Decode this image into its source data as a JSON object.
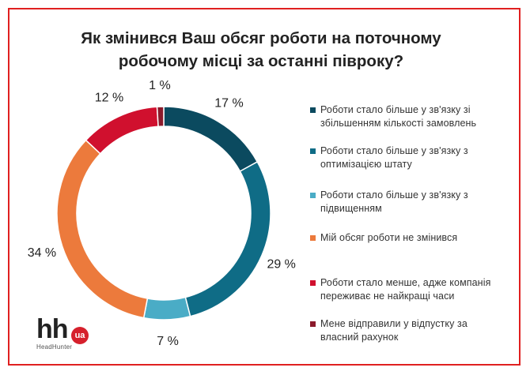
{
  "title": {
    "line1": "Як змінився Ваш обсяг роботи на поточному",
    "line2": "робочому місці за останні півроку?"
  },
  "chart_data": {
    "type": "pie",
    "title": "Як змінився Ваш обсяг роботи на поточному робочому місці за останні півроку?",
    "donut": true,
    "legend_position": "right",
    "categories": [
      "Роботи стало більше у зв'язку зі збільшенням кількості замовлень",
      "Роботи стало більше у зв'язку з оптимізацією штату",
      "Роботи стало більше у зв'язку з підвищенням",
      "Мій обсяг роботи не змінився",
      "Роботи стало менше, адже компанія переживає не найкращі часи",
      "Мене відправили у відпустку за власний рахунок"
    ],
    "values": [
      17,
      29,
      7,
      34,
      12,
      1
    ],
    "value_labels": [
      "17 %",
      "29 %",
      "7 %",
      "34 %",
      "12 %",
      "1 %"
    ],
    "colors": [
      "#0b4a5f",
      "#0f6c86",
      "#4aacc6",
      "#ec7a3c",
      "#d0102e",
      "#8b1a2b"
    ]
  },
  "legend": {
    "items": [
      {
        "line1": "Роботи стало більше у зв'язку зі",
        "line2": "збільшенням кількості замовлень"
      },
      {
        "line1": "Роботи стало більше у зв'язку з",
        "line2": "оптимізацією штату"
      },
      {
        "line1": "Роботи стало більше у зв'язку з",
        "line2": "підвищенням"
      },
      {
        "line1": "Мій обсяг роботи не змінився",
        "line2": ""
      },
      {
        "line1": "Роботи стало менше, адже компанія",
        "line2": "переживає не найкращі часи"
      },
      {
        "line1": "Мене відправили у відпустку за",
        "line2": "власний рахунок"
      }
    ]
  },
  "logo": {
    "mark": "hh",
    "badge": "ua",
    "subtitle": "HeadHunter"
  },
  "frame_color": "#e02020"
}
